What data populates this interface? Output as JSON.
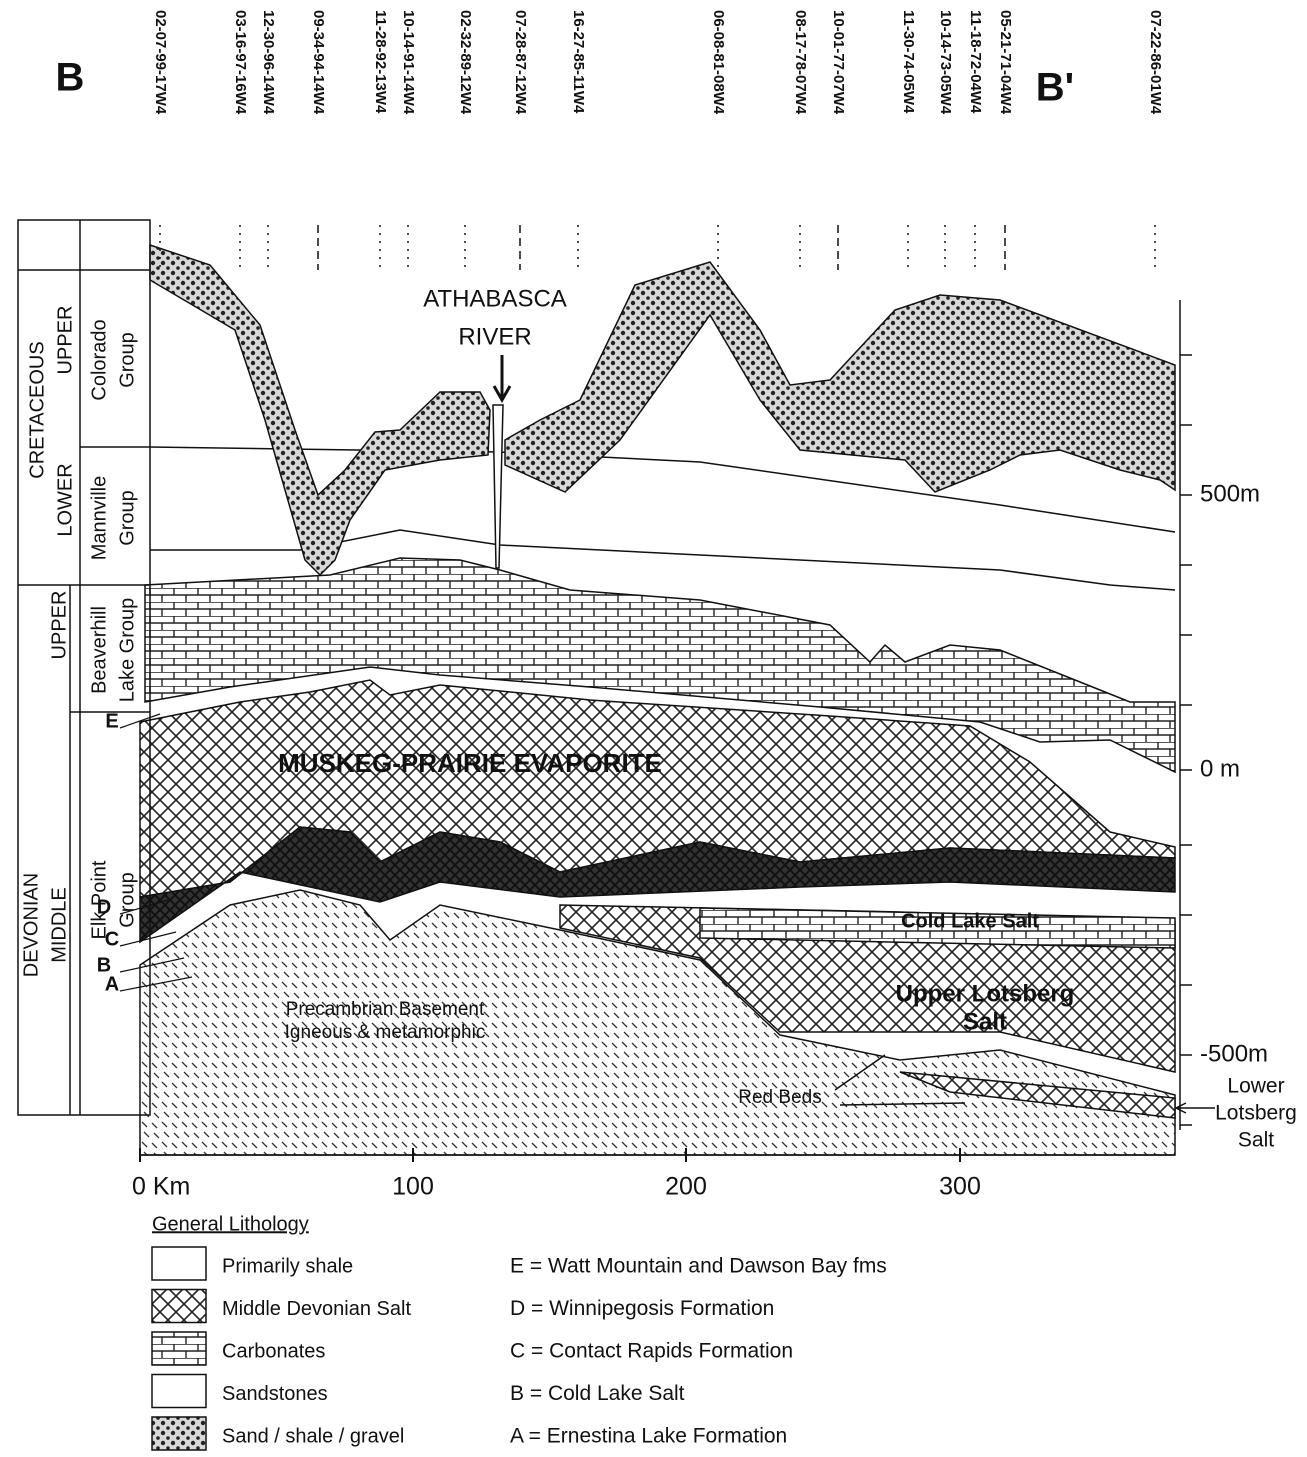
{
  "section": {
    "start_label": "B",
    "end_label": "B'"
  },
  "wells": [
    "02-07-99-17W4",
    "03-16-97-16W4",
    "12-30-96-14W4",
    "09-34-94-14W4",
    "11-28-92-13W4",
    "10-14-91-14W4",
    "02-32-89-12W4",
    "07-28-87-12W4",
    "16-27-85-11W4",
    "06-08-81-08W4",
    "08-17-78-07W4",
    "10-01-77-07W4",
    "11-30-74-05W4",
    "10-14-73-05W4",
    "11-18-72-04W4",
    "05-21-71-04W4",
    "07-22-86-01W4"
  ],
  "river": [
    "ATHABASCA",
    "RIVER"
  ],
  "column": {
    "cretaceous": "CRETACEOUS",
    "cretaceous_upper": "UPPER",
    "cretaceous_lower": "LOWER",
    "colorado": [
      "Colorado",
      "Group"
    ],
    "mannville": [
      "Mannville",
      "Group"
    ],
    "devonian": "DEVONIAN",
    "devonian_upper": "UPPER",
    "devonian_middle": "MIDDLE",
    "beaverhill": [
      "Beaverhill",
      "Lake Group"
    ],
    "elk_point": [
      "Elk Point",
      "Group"
    ],
    "letters": [
      "E",
      "D",
      "C",
      "B",
      "A"
    ]
  },
  "depth_scale": [
    "500m",
    "0 m",
    "-500m"
  ],
  "lower_lotsberg": [
    "Lower",
    "Lotsberg",
    "Salt"
  ],
  "distance_scale": [
    "0 Km",
    "100",
    "200",
    "300"
  ],
  "units": {
    "evaporite": "MUSKEG-PRAIRIE EVAPORITE",
    "cold_lake": "Cold Lake Salt",
    "upper_lotsberg": [
      "Upper Lotsberg",
      "Salt"
    ],
    "basement": [
      "Precambrian Basement",
      "Igneous & metamorphic"
    ],
    "red_beds": "Red Beds"
  },
  "legend": {
    "title": "General Lithology",
    "items": [
      "Primarily shale",
      "Middle Devonian Salt",
      "Carbonates",
      "Sandstones",
      "Sand / shale / gravel"
    ]
  },
  "key": [
    "E = Watt Mountain and Dawson Bay fms",
    "D = Winnipegosis Formation",
    "C = Contact Rapids Formation",
    "B = Cold Lake Salt",
    "A = Ernestina Lake Formation"
  ]
}
